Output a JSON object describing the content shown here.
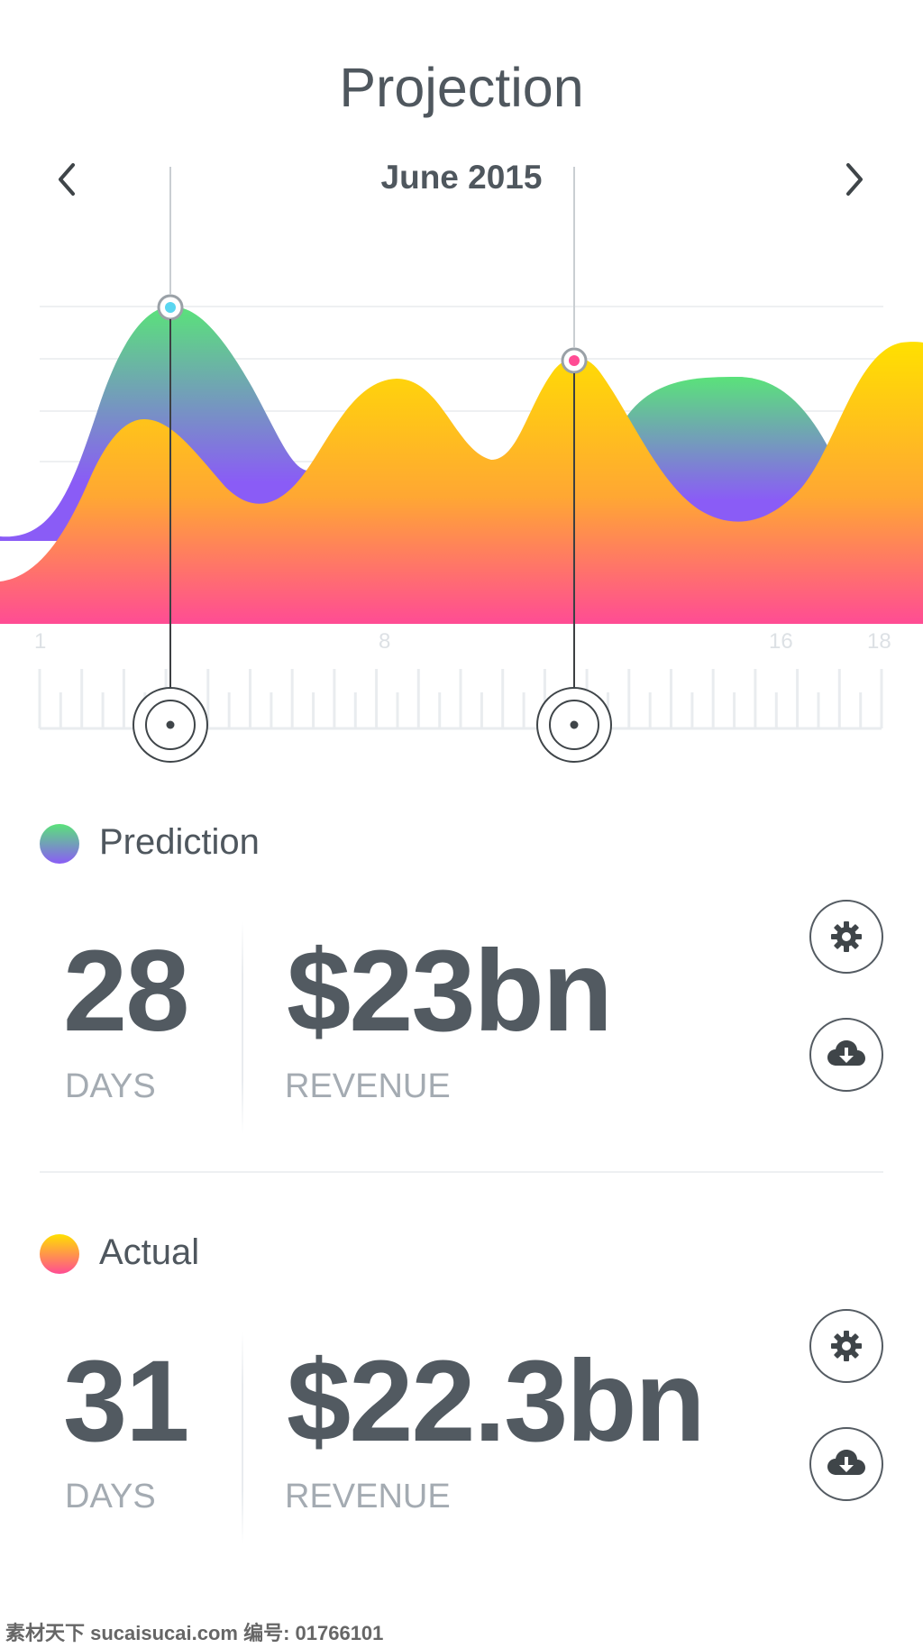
{
  "header": {
    "title": "Projection",
    "month": "June 2015",
    "prev_icon": "chevron-left-icon",
    "next_icon": "chevron-right-icon"
  },
  "chart_data": {
    "type": "area",
    "x_tick_labels": [
      "1",
      "8",
      "16",
      "18"
    ],
    "series": [
      {
        "name": "Prediction",
        "gradient": [
          "#5ae27a",
          "#8a5cf6"
        ]
      },
      {
        "name": "Actual",
        "gradient": [
          "#ffe000",
          "#ff4c94"
        ]
      }
    ],
    "markers": [
      {
        "color": "#5ad6f0",
        "cursor": "left"
      },
      {
        "color": "#ff4c94",
        "cursor": "right"
      }
    ],
    "grid": true
  },
  "summary": [
    {
      "label": "Prediction",
      "dot_colors": [
        "#5ae27a",
        "#8a5cf6"
      ],
      "days_value": "28",
      "days_label": "DAYS",
      "revenue_value": "$23bn",
      "revenue_label": "REVENUE",
      "settings_icon": "gear-icon",
      "download_icon": "cloud-download-icon"
    },
    {
      "label": "Actual",
      "dot_colors": [
        "#ffe000",
        "#ff4c94"
      ],
      "days_value": "31",
      "days_label": "DAYS",
      "revenue_value": "$22.3bn",
      "revenue_label": "REVENUE",
      "settings_icon": "gear-icon",
      "download_icon": "cloud-download-icon"
    }
  ],
  "watermark": "素材天下 sucaisucai.com  编号: 01766101",
  "colors": {
    "text_dark": "#525a61",
    "text_light": "#a4abb2",
    "grid": "#eef0f2"
  }
}
